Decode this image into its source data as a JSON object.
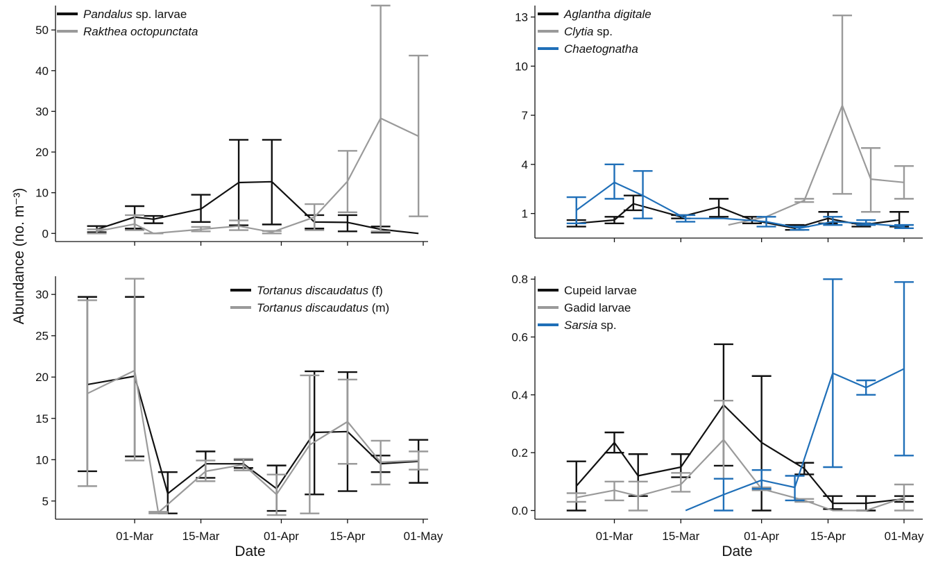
{
  "figure": {
    "shared_ylabel": "Abundance (no. m⁻³)",
    "colors": {
      "black": "#111111",
      "gray": "#9a9a9a",
      "blue": "#1f6fb8"
    }
  },
  "chart_data": [
    {
      "type": "line",
      "panel": "top-left",
      "xlabel": "",
      "xtick_labels": [],
      "yticks": [
        0,
        10,
        20,
        30,
        40,
        50
      ],
      "ylim": [
        -2,
        56
      ],
      "legend_position": "top-left",
      "series": [
        {
          "name": "Pandalus",
          "name_suffix": " sp. larvae",
          "italic": true,
          "color": "#111111",
          "points": [
            {
              "x": "2024-02-22",
              "y": 1.0,
              "lo": 0.3,
              "hi": 1.8
            },
            {
              "x": "2024-03-01",
              "y": 4.0,
              "lo": 1.2,
              "hi": 6.7
            },
            {
              "x": "2024-03-05",
              "y": 3.5,
              "lo": 2.5,
              "hi": 4.3
            },
            {
              "x": "2024-03-15",
              "y": 6.0,
              "lo": 2.8,
              "hi": 9.5
            },
            {
              "x": "2024-03-23",
              "y": 12.5,
              "lo": 2.0,
              "hi": 23.0
            },
            {
              "x": "2024-03-30",
              "y": 12.7,
              "lo": 2.2,
              "hi": 23.0
            },
            {
              "x": "2024-04-08",
              "y": 2.8,
              "lo": 1.2,
              "hi": 4.5
            },
            {
              "x": "2024-04-15",
              "y": 2.7,
              "lo": 0.5,
              "hi": 4.5
            },
            {
              "x": "2024-04-22",
              "y": 1.0,
              "lo": 0.2,
              "hi": 1.7
            },
            {
              "x": "2024-04-30",
              "y": 0.0
            }
          ]
        },
        {
          "name": "Rakthea octopunctata",
          "name_suffix": "",
          "italic": true,
          "color": "#9a9a9a",
          "points": [
            {
              "x": "2024-02-22",
              "y": 0.5,
              "lo": 0.0,
              "hi": 1.0
            },
            {
              "x": "2024-03-01",
              "y": 2.3,
              "lo": 0.8,
              "hi": 4.5
            },
            {
              "x": "2024-03-05",
              "y": 0.0,
              "lo": 0.0,
              "hi": 0.0
            },
            {
              "x": "2024-03-15",
              "y": 1.0,
              "lo": 0.5,
              "hi": 1.6
            },
            {
              "x": "2024-03-23",
              "y": 1.8,
              "lo": 0.8,
              "hi": 3.2
            },
            {
              "x": "2024-03-30",
              "y": 0.3,
              "lo": 0.0,
              "hi": 0.6
            },
            {
              "x": "2024-04-08",
              "y": 4.0,
              "lo": 0.8,
              "hi": 7.2
            },
            {
              "x": "2024-04-15",
              "y": 12.8,
              "lo": 5.2,
              "hi": 20.3
            },
            {
              "x": "2024-04-22",
              "y": 28.3,
              "lo": 0.5,
              "hi": 56.0
            },
            {
              "x": "2024-04-30",
              "y": 23.9,
              "lo": 4.2,
              "hi": 43.7
            }
          ]
        }
      ]
    },
    {
      "type": "line",
      "panel": "top-right",
      "xlabel": "",
      "xtick_labels": [],
      "yticks": [
        1,
        4,
        7,
        10,
        13
      ],
      "ylim": [
        -0.5,
        13.7
      ],
      "legend_position": "top-left",
      "series": [
        {
          "name": "Aglantha digitale",
          "name_suffix": "",
          "italic": true,
          "color": "#111111",
          "points": [
            {
              "x": "2024-02-22",
              "y": 0.4,
              "lo": 0.2,
              "hi": 0.6
            },
            {
              "x": "2024-03-01",
              "y": 0.6,
              "lo": 0.4,
              "hi": 0.8
            },
            {
              "x": "2024-03-05",
              "y": 1.6,
              "lo": 1.2,
              "hi": 2.1
            },
            {
              "x": "2024-03-15",
              "y": 0.8,
              "lo": 0.7,
              "hi": 0.9
            },
            {
              "x": "2024-03-23",
              "y": 1.4,
              "lo": 0.8,
              "hi": 1.9
            },
            {
              "x": "2024-03-30",
              "y": 0.6,
              "lo": 0.4,
              "hi": 0.8
            },
            {
              "x": "2024-04-08",
              "y": 0.1,
              "lo": 0.0,
              "hi": 0.3
            },
            {
              "x": "2024-04-15",
              "y": 0.7,
              "lo": 0.4,
              "hi": 1.1
            },
            {
              "x": "2024-04-22",
              "y": 0.3,
              "lo": 0.2,
              "hi": 0.4
            },
            {
              "x": "2024-04-30",
              "y": 0.6,
              "lo": 0.2,
              "hi": 1.1
            }
          ]
        },
        {
          "name": "Clytia",
          "name_suffix": " sp.",
          "italic": true,
          "color": "#9a9a9a",
          "points": [
            {
              "x": "2024-03-25",
              "y": 0.3
            },
            {
              "x": "2024-04-02",
              "y": 0.8
            },
            {
              "x": "2024-04-10",
              "y": 1.8,
              "lo": 1.7,
              "hi": 1.9
            },
            {
              "x": "2024-04-18",
              "y": 7.6,
              "lo": 2.2,
              "hi": 13.1
            },
            {
              "x": "2024-04-24",
              "y": 3.1,
              "lo": 1.1,
              "hi": 5.0
            },
            {
              "x": "2024-05-01",
              "y": 2.9,
              "lo": 1.9,
              "hi": 3.9
            }
          ]
        },
        {
          "name": "Chaetognatha",
          "name_suffix": "",
          "italic": true,
          "color": "#1f6fb8",
          "points": [
            {
              "x": "2024-02-22",
              "y": 1.2,
              "lo": 0.4,
              "hi": 2.0
            },
            {
              "x": "2024-03-01",
              "y": 2.9,
              "lo": 1.9,
              "hi": 4.0
            },
            {
              "x": "2024-03-07",
              "y": 2.1,
              "lo": 0.7,
              "hi": 3.6
            },
            {
              "x": "2024-03-16",
              "y": 0.7,
              "lo": 0.5,
              "hi": 0.9
            },
            {
              "x": "2024-03-24",
              "y": 0.7
            },
            {
              "x": "2024-04-02",
              "y": 0.5,
              "lo": 0.2,
              "hi": 0.8
            },
            {
              "x": "2024-04-09",
              "y": 0.1,
              "lo": 0.0,
              "hi": 0.2
            },
            {
              "x": "2024-04-16",
              "y": 0.5,
              "lo": 0.3,
              "hi": 0.8
            },
            {
              "x": "2024-04-23",
              "y": 0.4,
              "lo": 0.3,
              "hi": 0.6
            },
            {
              "x": "2024-05-01",
              "y": 0.2,
              "lo": 0.1,
              "hi": 0.3
            }
          ]
        }
      ]
    },
    {
      "type": "line",
      "panel": "bottom-left",
      "xlabel": "Date",
      "xtick_labels": [
        {
          "x": "2024-03-01",
          "label": "01-Mar"
        },
        {
          "x": "2024-03-15",
          "label": "15-Mar"
        },
        {
          "x": "2024-04-01",
          "label": "01-Apr"
        },
        {
          "x": "2024-04-15",
          "label": "15-Apr"
        },
        {
          "x": "2024-05-01",
          "label": "01-May"
        }
      ],
      "yticks": [
        5,
        10,
        15,
        20,
        25,
        30
      ],
      "ylim": [
        2.8,
        32.2
      ],
      "legend_position": "top-right",
      "series": [
        {
          "name": "Tortanus discaudatus",
          "name_suffix": " (f)",
          "italic": true,
          "color": "#111111",
          "points": [
            {
              "x": "2024-02-20",
              "y": 19.1,
              "lo": 8.6,
              "hi": 29.7
            },
            {
              "x": "2024-03-01",
              "y": 20.1,
              "lo": 10.4,
              "hi": 29.7
            },
            {
              "x": "2024-03-08",
              "y": 5.9,
              "lo": 3.5,
              "hi": 8.5
            },
            {
              "x": "2024-03-16",
              "y": 9.5,
              "lo": 7.8,
              "hi": 11.0
            },
            {
              "x": "2024-03-24",
              "y": 9.5,
              "lo": 9.0,
              "hi": 10.0
            },
            {
              "x": "2024-03-31",
              "y": 6.5,
              "lo": 3.8,
              "hi": 9.3
            },
            {
              "x": "2024-04-08",
              "y": 13.3,
              "lo": 5.8,
              "hi": 20.7
            },
            {
              "x": "2024-04-15",
              "y": 13.4,
              "lo": 6.2,
              "hi": 20.6
            },
            {
              "x": "2024-04-22",
              "y": 9.5,
              "lo": 8.5,
              "hi": 10.5
            },
            {
              "x": "2024-04-30",
              "y": 9.8,
              "lo": 7.2,
              "hi": 12.4
            }
          ]
        },
        {
          "name": "Tortanus discaudatus",
          "name_suffix": " (m)",
          "italic": true,
          "color": "#9a9a9a",
          "points": [
            {
              "x": "2024-02-20",
              "y": 18.0,
              "lo": 6.8,
              "hi": 29.3
            },
            {
              "x": "2024-03-01",
              "y": 20.8,
              "lo": 9.9,
              "hi": 31.9
            },
            {
              "x": "2024-03-06",
              "y": 3.6,
              "lo": 3.5,
              "hi": 3.7
            },
            {
              "x": "2024-03-16",
              "y": 8.6,
              "lo": 7.4,
              "hi": 9.9
            },
            {
              "x": "2024-03-24",
              "y": 9.4,
              "lo": 8.7,
              "hi": 10.1
            },
            {
              "x": "2024-03-31",
              "y": 5.8,
              "lo": 3.3,
              "hi": 8.2
            },
            {
              "x": "2024-04-07",
              "y": 11.8,
              "lo": 3.5,
              "hi": 20.2
            },
            {
              "x": "2024-04-15",
              "y": 14.6,
              "lo": 9.5,
              "hi": 19.7
            },
            {
              "x": "2024-04-22",
              "y": 9.7,
              "lo": 7.0,
              "hi": 12.3
            },
            {
              "x": "2024-04-30",
              "y": 9.9,
              "lo": 8.8,
              "hi": 11.0
            }
          ]
        }
      ]
    },
    {
      "type": "line",
      "panel": "bottom-right",
      "xlabel": "Date",
      "xtick_labels": [
        {
          "x": "2024-03-01",
          "label": "01-Mar"
        },
        {
          "x": "2024-03-15",
          "label": "15-Mar"
        },
        {
          "x": "2024-04-01",
          "label": "01-Apr"
        },
        {
          "x": "2024-04-15",
          "label": "15-Apr"
        },
        {
          "x": "2024-05-01",
          "label": "01-May"
        }
      ],
      "yticks": [
        "0.0",
        "0.2",
        "0.4",
        "0.6",
        "0.8"
      ],
      "ylim": [
        -0.03,
        0.81
      ],
      "legend_position": "top-left",
      "series": [
        {
          "name": "Cupeid larvae",
          "name_suffix": "",
          "italic": false,
          "color": "#111111",
          "points": [
            {
              "x": "2024-02-22",
              "y": 0.085,
              "lo": 0.0,
              "hi": 0.17
            },
            {
              "x": "2024-03-01",
              "y": 0.235,
              "lo": 0.2,
              "hi": 0.27
            },
            {
              "x": "2024-03-06",
              "y": 0.12,
              "lo": 0.05,
              "hi": 0.195
            },
            {
              "x": "2024-03-15",
              "y": 0.15,
              "lo": 0.115,
              "hi": 0.195
            },
            {
              "x": "2024-03-24",
              "y": 0.365,
              "lo": 0.155,
              "hi": 0.575
            },
            {
              "x": "2024-04-01",
              "y": 0.235,
              "lo": 0.0,
              "hi": 0.465
            },
            {
              "x": "2024-04-10",
              "y": 0.145,
              "lo": 0.125,
              "hi": 0.165
            },
            {
              "x": "2024-04-16",
              "y": 0.025,
              "lo": 0.005,
              "hi": 0.05
            },
            {
              "x": "2024-04-23",
              "y": 0.025,
              "lo": 0.0,
              "hi": 0.05
            },
            {
              "x": "2024-05-01",
              "y": 0.04,
              "lo": 0.03,
              "hi": 0.05
            }
          ]
        },
        {
          "name": "Gadid larvae",
          "name_suffix": "",
          "italic": false,
          "color": "#9a9a9a",
          "points": [
            {
              "x": "2024-02-22",
              "y": 0.045,
              "lo": 0.03,
              "hi": 0.06
            },
            {
              "x": "2024-03-01",
              "y": 0.07,
              "lo": 0.035,
              "hi": 0.1
            },
            {
              "x": "2024-03-06",
              "y": 0.05,
              "lo": 0.0,
              "hi": 0.1
            },
            {
              "x": "2024-03-15",
              "y": 0.09,
              "lo": 0.065,
              "hi": 0.13
            },
            {
              "x": "2024-03-24",
              "y": 0.245,
              "lo": 0.11,
              "hi": 0.38
            },
            {
              "x": "2024-04-01",
              "y": 0.075,
              "lo": 0.07,
              "hi": 0.08
            },
            {
              "x": "2024-04-10",
              "y": 0.035,
              "lo": 0.03,
              "hi": 0.04
            },
            {
              "x": "2024-04-16",
              "y": 0.0
            },
            {
              "x": "2024-04-23",
              "y": 0.0
            },
            {
              "x": "2024-05-01",
              "y": 0.045,
              "lo": 0.0,
              "hi": 0.09
            }
          ]
        },
        {
          "name": "Sarsia",
          "name_suffix": " sp.",
          "italic": true,
          "color": "#1f6fb8",
          "points": [
            {
              "x": "2024-03-16",
              "y": 0.0
            },
            {
              "x": "2024-03-24",
              "y": 0.055,
              "lo": 0.0,
              "hi": 0.11
            },
            {
              "x": "2024-04-01",
              "y": 0.105,
              "lo": 0.075,
              "hi": 0.14
            },
            {
              "x": "2024-04-08",
              "y": 0.08,
              "lo": 0.035,
              "hi": 0.12
            },
            {
              "x": "2024-04-16",
              "y": 0.475,
              "lo": 0.15,
              "hi": 0.8
            },
            {
              "x": "2024-04-23",
              "y": 0.425,
              "lo": 0.4,
              "hi": 0.45
            },
            {
              "x": "2024-05-01",
              "y": 0.49,
              "lo": 0.19,
              "hi": 0.79
            }
          ]
        }
      ]
    }
  ]
}
